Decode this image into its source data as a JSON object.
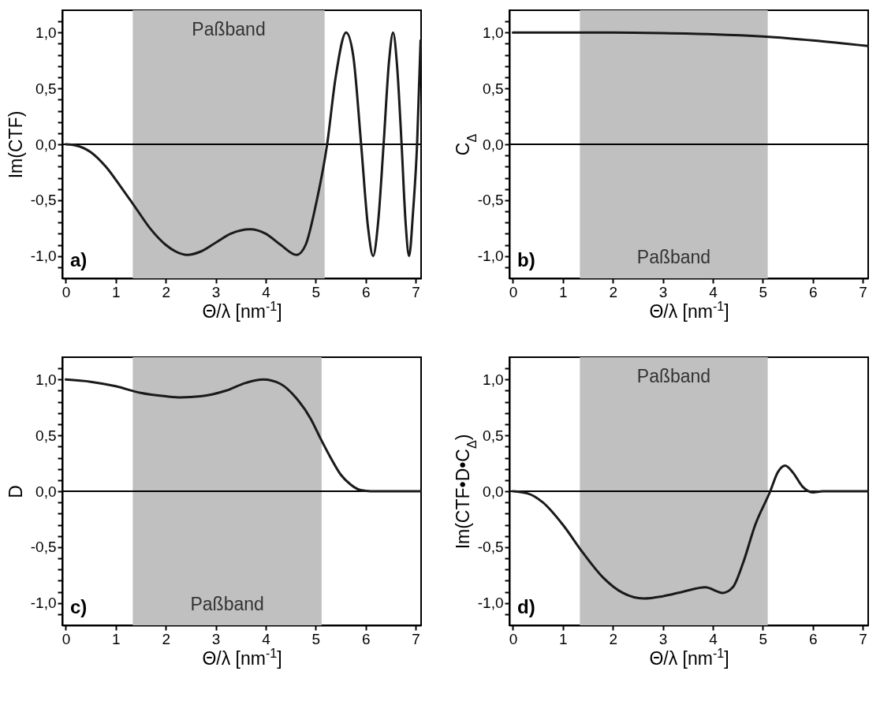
{
  "chart_data": [
    {
      "type": "line",
      "xlabel": "Θ/λ [nm$^{-1}$]",
      "ylabel": "Im(CTF)",
      "color": "#1a1a1a",
      "line_style": "solid",
      "x": [
        0,
        0.2,
        0.5,
        0.8,
        1.1,
        1.4,
        1.7,
        2.0,
        2.2,
        2.43,
        2.7,
        3.0,
        3.3,
        3.69,
        4.0,
        4.3,
        4.62,
        4.8,
        5.0,
        5.23,
        5.4,
        5.61,
        5.75,
        5.91,
        6.05,
        6.15,
        6.25,
        6.36,
        6.47,
        6.55,
        6.63,
        6.72,
        6.8,
        6.87,
        6.95,
        7.03,
        7.1
      ],
      "values": [
        0,
        -0.01,
        -0.07,
        -0.2,
        -0.38,
        -0.57,
        -0.76,
        -0.9,
        -0.96,
        -0.99,
        -0.96,
        -0.88,
        -0.8,
        -0.76,
        -0.8,
        -0.9,
        -0.99,
        -0.9,
        -0.55,
        0,
        0.6,
        1.0,
        0.8,
        0,
        -0.75,
        -1.0,
        -0.7,
        0,
        0.75,
        1.0,
        0.7,
        0,
        -0.7,
        -1.0,
        -0.6,
        0,
        0.93
      ],
      "xlim": [
        -0.07,
        7.11
      ],
      "ylim": [
        -1.2,
        1.2
      ],
      "xticks": [
        0,
        1,
        2,
        3,
        4,
        5,
        6,
        7
      ],
      "yticks": [
        {
          "value": -1.1,
          "label": null
        },
        {
          "value": -1,
          "label": "-1,0"
        },
        {
          "value": -0.9,
          "label": null
        },
        {
          "value": -0.8,
          "label": null
        },
        {
          "value": -0.7,
          "label": null
        },
        {
          "value": -0.6,
          "label": null
        },
        {
          "value": -0.5,
          "label": "-0,5"
        },
        {
          "value": -0.4,
          "label": null
        },
        {
          "value": -0.3,
          "label": null
        },
        {
          "value": -0.2,
          "label": null
        },
        {
          "value": -0.1,
          "label": null
        },
        {
          "value": 0,
          "label": "0,0"
        },
        {
          "value": 0.1,
          "label": null
        },
        {
          "value": 0.2,
          "label": null
        },
        {
          "value": 0.3,
          "label": null
        },
        {
          "value": 0.4,
          "label": null
        },
        {
          "value": 0.5,
          "label": "0,5"
        },
        {
          "value": 0.6,
          "label": null
        },
        {
          "value": 0.7,
          "label": null
        },
        {
          "value": 0.8,
          "label": null
        },
        {
          "value": 0.9,
          "label": null
        },
        {
          "value": 1,
          "label": "1,0"
        },
        {
          "value": 1.1,
          "label": null
        }
      ],
      "ref_lines": [
        {
          "axis": "y",
          "value": 0,
          "color": "#000000"
        }
      ],
      "bands": [
        {
          "axis": "x",
          "from": 1.34,
          "to": 5.18,
          "label": "Paßband",
          "color": "#c0c0c0"
        }
      ],
      "annotations": [
        "a)"
      ]
    },
    {
      "type": "line",
      "xlabel": "Θ/λ [nm$^{-1}$]",
      "ylabel": "C$_{Δ}$",
      "color": "#1a1a1a",
      "line_style": "solid",
      "x": [
        0,
        1,
        2,
        3,
        4,
        5,
        6,
        7.1
      ],
      "values": [
        1.0,
        1.0,
        1.0,
        0.995,
        0.985,
        0.965,
        0.93,
        0.88
      ],
      "xlim": [
        -0.07,
        7.11
      ],
      "ylim": [
        -1.2,
        1.2
      ],
      "xticks": [
        0,
        1,
        2,
        3,
        4,
        5,
        6,
        7
      ],
      "yticks": [
        {
          "value": -1.1,
          "label": null
        },
        {
          "value": -1,
          "label": "-1,0"
        },
        {
          "value": -0.9,
          "label": null
        },
        {
          "value": -0.8,
          "label": null
        },
        {
          "value": -0.7,
          "label": null
        },
        {
          "value": -0.6,
          "label": null
        },
        {
          "value": -0.5,
          "label": "-0,5"
        },
        {
          "value": -0.4,
          "label": null
        },
        {
          "value": -0.3,
          "label": null
        },
        {
          "value": -0.2,
          "label": null
        },
        {
          "value": -0.1,
          "label": null
        },
        {
          "value": 0,
          "label": "0,0"
        },
        {
          "value": 0.1,
          "label": null
        },
        {
          "value": 0.2,
          "label": null
        },
        {
          "value": 0.3,
          "label": null
        },
        {
          "value": 0.4,
          "label": null
        },
        {
          "value": 0.5,
          "label": "0,5"
        },
        {
          "value": 0.6,
          "label": null
        },
        {
          "value": 0.7,
          "label": null
        },
        {
          "value": 0.8,
          "label": null
        },
        {
          "value": 0.9,
          "label": null
        },
        {
          "value": 1,
          "label": "1,0"
        },
        {
          "value": 1.1,
          "label": null
        }
      ],
      "ref_lines": [
        {
          "axis": "y",
          "value": 0,
          "color": "#000000"
        }
      ],
      "bands": [
        {
          "axis": "x",
          "from": 1.34,
          "to": 5.1,
          "label": "Paßband",
          "color": "#c0c0c0"
        }
      ],
      "annotations": [
        "b)"
      ]
    },
    {
      "type": "line",
      "xlabel": "Θ/λ [nm$^{-1}$]",
      "ylabel": "D",
      "color": "#1a1a1a",
      "line_style": "solid",
      "x": [
        0,
        0.5,
        1.0,
        1.5,
        2.0,
        2.3,
        2.7,
        3.2,
        3.6,
        3.95,
        4.3,
        4.6,
        4.9,
        5.1,
        5.3,
        5.5,
        5.7,
        5.9,
        6.1,
        7.1
      ],
      "values": [
        1.0,
        0.98,
        0.94,
        0.88,
        0.85,
        0.84,
        0.85,
        0.9,
        0.97,
        1.0,
        0.96,
        0.84,
        0.65,
        0.47,
        0.3,
        0.15,
        0.06,
        0.01,
        0,
        0
      ],
      "xlim": [
        -0.07,
        7.11
      ],
      "ylim": [
        -1.2,
        1.2
      ],
      "xticks": [
        0,
        1,
        2,
        3,
        4,
        5,
        6,
        7
      ],
      "yticks": [
        {
          "value": -1.1,
          "label": null
        },
        {
          "value": -1,
          "label": "-1,0"
        },
        {
          "value": -0.9,
          "label": null
        },
        {
          "value": -0.8,
          "label": null
        },
        {
          "value": -0.7,
          "label": null
        },
        {
          "value": -0.6,
          "label": null
        },
        {
          "value": -0.5,
          "label": "-0,5"
        },
        {
          "value": -0.4,
          "label": null
        },
        {
          "value": -0.3,
          "label": null
        },
        {
          "value": -0.2,
          "label": null
        },
        {
          "value": -0.1,
          "label": null
        },
        {
          "value": 0,
          "label": "0,0"
        },
        {
          "value": 0.1,
          "label": null
        },
        {
          "value": 0.2,
          "label": null
        },
        {
          "value": 0.3,
          "label": null
        },
        {
          "value": 0.4,
          "label": null
        },
        {
          "value": 0.5,
          "label": "0,5"
        },
        {
          "value": 0.6,
          "label": null
        },
        {
          "value": 0.7,
          "label": null
        },
        {
          "value": 0.8,
          "label": null
        },
        {
          "value": 0.9,
          "label": null
        },
        {
          "value": 1,
          "label": "1,0"
        },
        {
          "value": 1.1,
          "label": null
        }
      ],
      "ref_lines": [
        {
          "axis": "y",
          "value": 0,
          "color": "#000000"
        }
      ],
      "bands": [
        {
          "axis": "x",
          "from": 1.34,
          "to": 5.12,
          "label": "Paßband",
          "color": "#c0c0c0"
        }
      ],
      "annotations": [
        "c)"
      ]
    },
    {
      "type": "line",
      "xlabel": "Θ/λ [nm$^{-1}$]",
      "ylabel": "Im(CTF•D•C$_{Δ}$)",
      "color": "#1a1a1a",
      "line_style": "solid",
      "x": [
        0,
        0.3,
        0.6,
        1.0,
        1.4,
        1.8,
        2.2,
        2.62,
        3.0,
        3.4,
        3.85,
        4.2,
        4.4,
        4.6,
        4.85,
        5.15,
        5.3,
        5.45,
        5.6,
        5.8,
        6.0,
        6.2,
        7.1
      ],
      "values": [
        0,
        -0.02,
        -0.1,
        -0.3,
        -0.55,
        -0.77,
        -0.91,
        -0.96,
        -0.94,
        -0.9,
        -0.86,
        -0.91,
        -0.86,
        -0.65,
        -0.3,
        0,
        0.17,
        0.23,
        0.17,
        0.04,
        -0.01,
        0,
        0
      ],
      "xlim": [
        -0.07,
        7.11
      ],
      "ylim": [
        -1.2,
        1.2
      ],
      "xticks": [
        0,
        1,
        2,
        3,
        4,
        5,
        6,
        7
      ],
      "yticks": [
        {
          "value": -1.1,
          "label": null
        },
        {
          "value": -1,
          "label": "-1,0"
        },
        {
          "value": -0.9,
          "label": null
        },
        {
          "value": -0.8,
          "label": null
        },
        {
          "value": -0.7,
          "label": null
        },
        {
          "value": -0.6,
          "label": null
        },
        {
          "value": -0.5,
          "label": "-0,5"
        },
        {
          "value": -0.4,
          "label": null
        },
        {
          "value": -0.3,
          "label": null
        },
        {
          "value": -0.2,
          "label": null
        },
        {
          "value": -0.1,
          "label": null
        },
        {
          "value": 0,
          "label": "0,0"
        },
        {
          "value": 0.1,
          "label": null
        },
        {
          "value": 0.2,
          "label": null
        },
        {
          "value": 0.3,
          "label": null
        },
        {
          "value": 0.4,
          "label": null
        },
        {
          "value": 0.5,
          "label": "0,5"
        },
        {
          "value": 0.6,
          "label": null
        },
        {
          "value": 0.7,
          "label": null
        },
        {
          "value": 0.8,
          "label": null
        },
        {
          "value": 0.9,
          "label": null
        },
        {
          "value": 1,
          "label": "1,0"
        },
        {
          "value": 1.1,
          "label": null
        }
      ],
      "ref_lines": [
        {
          "axis": "y",
          "value": 0,
          "color": "#000000"
        }
      ],
      "bands": [
        {
          "axis": "x",
          "from": 1.34,
          "to": 5.1,
          "label": "Paßband",
          "color": "#c0c0c0"
        }
      ],
      "annotations": [
        "d)"
      ]
    }
  ]
}
